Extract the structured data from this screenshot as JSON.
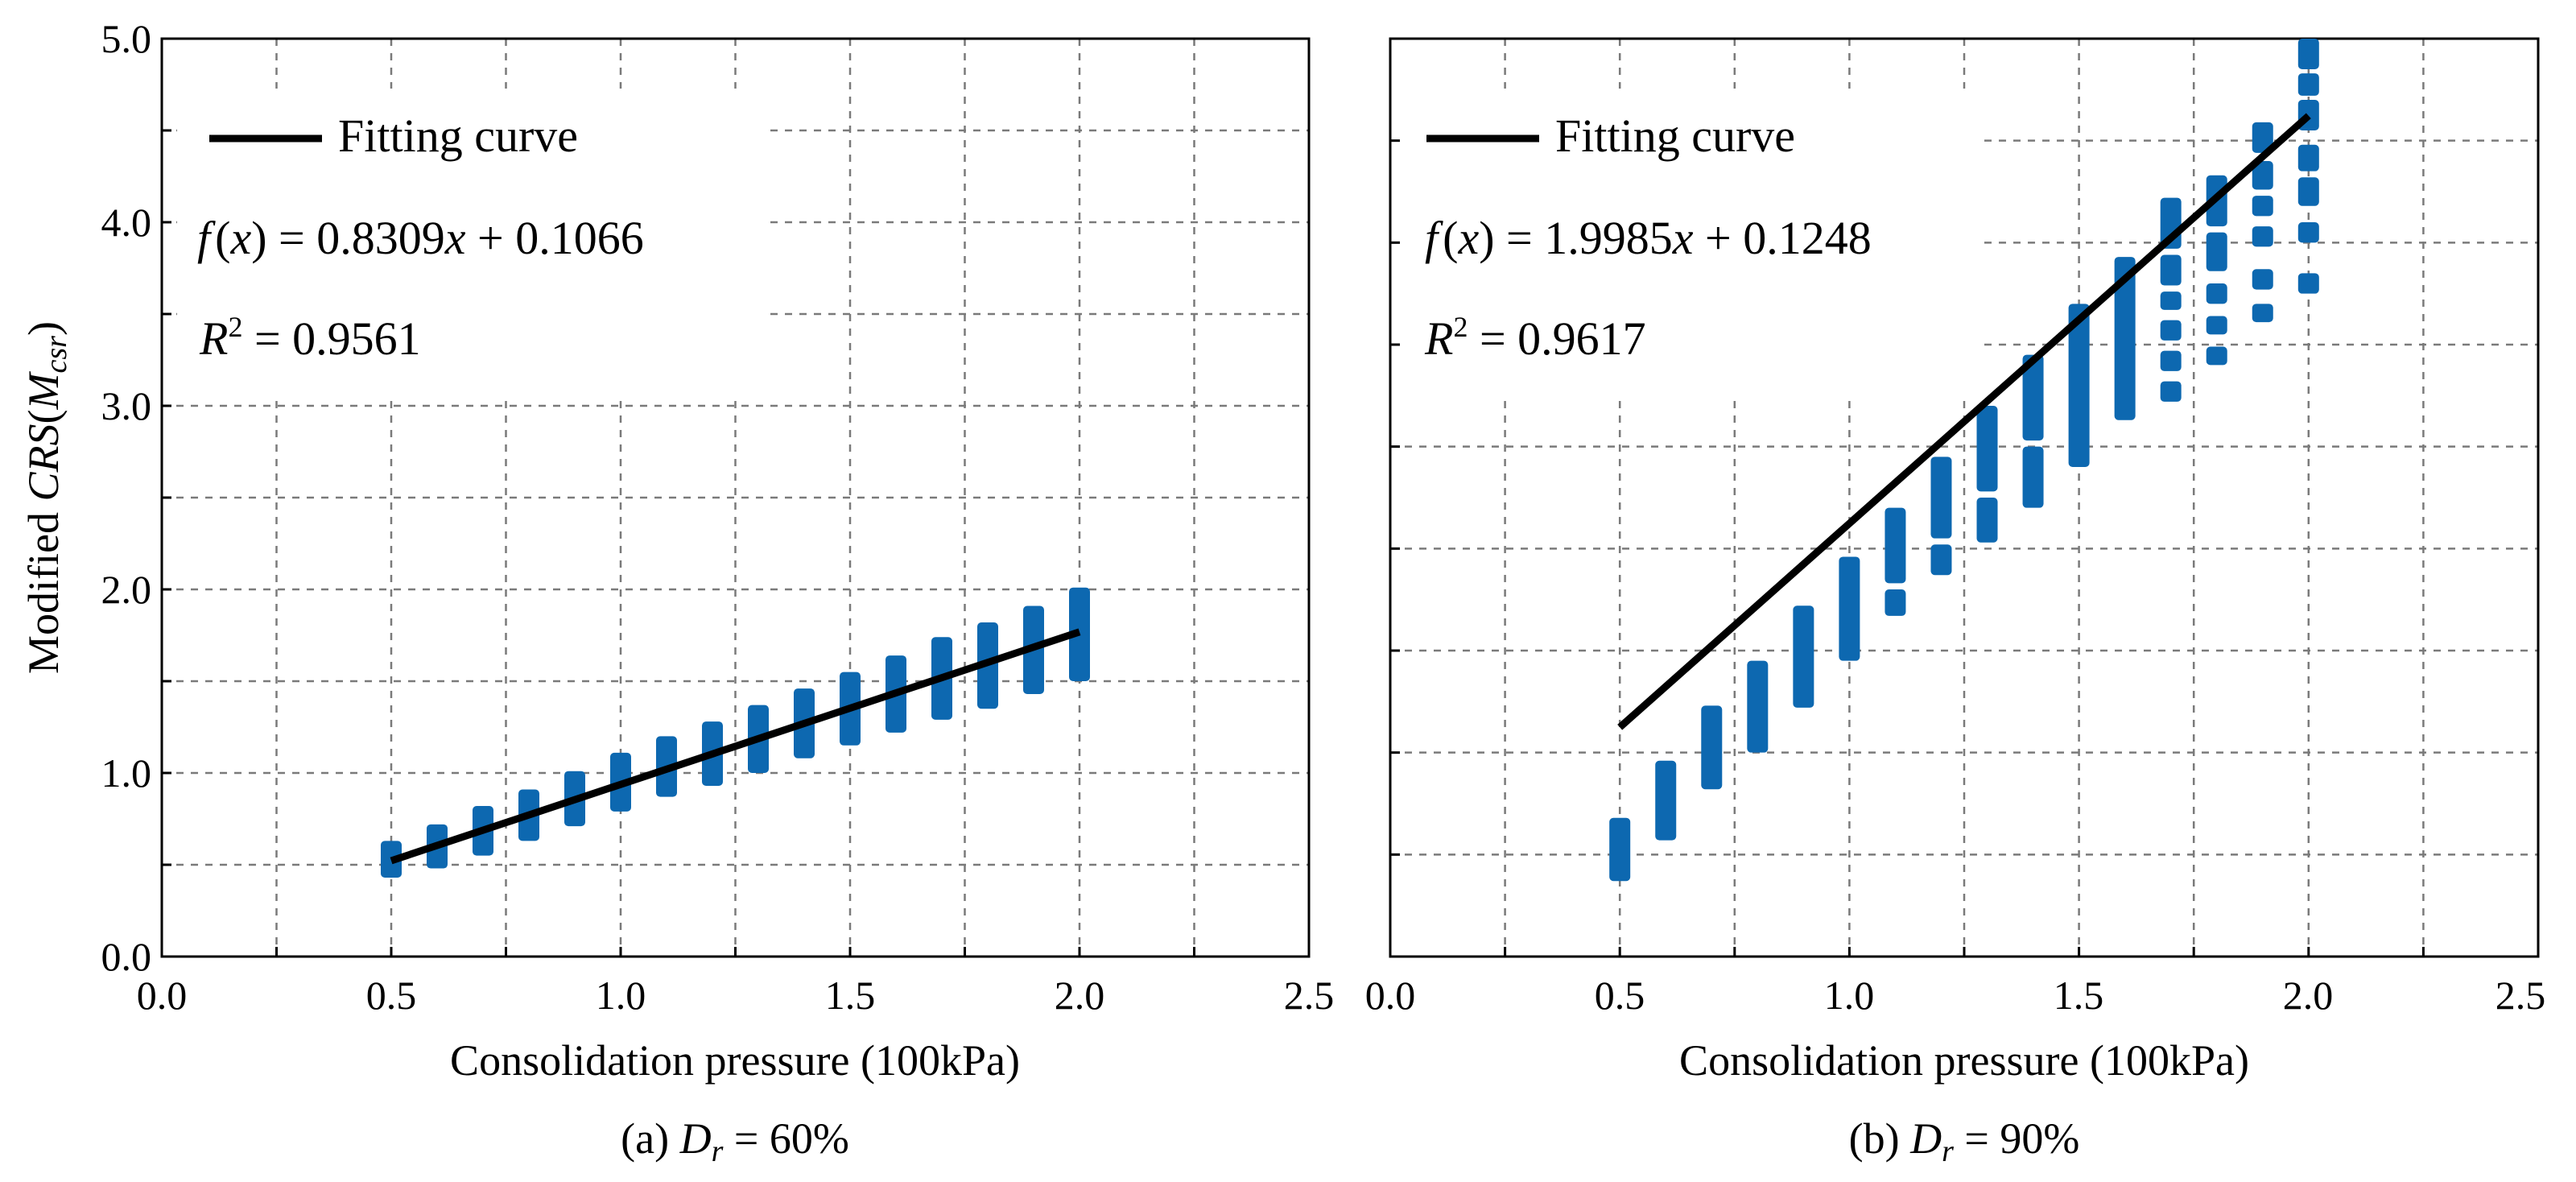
{
  "chart_data": [
    {
      "type": "scatter",
      "panel": "a",
      "xlabel": "Consolidation pressure (100kPa)",
      "ylabel_prefix": "Modified ",
      "ylabel_italic": "CRS",
      "ylabel_open": "(",
      "ylabel_sub_base": "M",
      "ylabel_sub": "csr",
      "ylabel_close": ")",
      "xlim": [
        0.0,
        2.5
      ],
      "ylim": [
        0.0,
        5.0
      ],
      "xticks": [
        "0.0",
        "0.5",
        "1.0",
        "1.5",
        "2.0",
        "2.5"
      ],
      "yticks": [
        "0.0",
        "1.0",
        "2.0",
        "3.0",
        "4.0",
        "5.0"
      ],
      "grid": true,
      "legend_label": "Fitting curve",
      "equation": {
        "f": "f",
        "lparen": "(",
        "x": "x",
        "rparen": ")",
        "rhs_coef": " = 0.8309",
        "rhs_x": "x",
        "rhs_const": " + 0.1066"
      },
      "r2": {
        "R": "R",
        "sup": "2",
        "value": " = 0.9561"
      },
      "caption": {
        "prefix": "(a) ",
        "D": "D",
        "sub": "r",
        "suffix": " = 60%"
      },
      "fit": {
        "slope": 0.8309,
        "intercept": 0.1066,
        "x_start": 0.5,
        "x_end": 2.0
      },
      "series": [
        {
          "name": "data",
          "x": 0.5,
          "ranges": [
            [
              0.43,
              0.63
            ]
          ]
        },
        {
          "name": "data",
          "x": 0.6,
          "ranges": [
            [
              0.48,
              0.72
            ]
          ]
        },
        {
          "name": "data",
          "x": 0.7,
          "ranges": [
            [
              0.55,
              0.82
            ]
          ]
        },
        {
          "name": "data",
          "x": 0.8,
          "ranges": [
            [
              0.63,
              0.91
            ]
          ]
        },
        {
          "name": "data",
          "x": 0.9,
          "ranges": [
            [
              0.71,
              1.01
            ]
          ]
        },
        {
          "name": "data",
          "x": 1.0,
          "ranges": [
            [
              0.79,
              1.11
            ]
          ]
        },
        {
          "name": "data",
          "x": 1.1,
          "ranges": [
            [
              0.87,
              1.2
            ]
          ]
        },
        {
          "name": "data",
          "x": 1.2,
          "ranges": [
            [
              0.93,
              1.28
            ]
          ]
        },
        {
          "name": "data",
          "x": 1.3,
          "ranges": [
            [
              1.0,
              1.37
            ]
          ]
        },
        {
          "name": "data",
          "x": 1.4,
          "ranges": [
            [
              1.08,
              1.46
            ]
          ]
        },
        {
          "name": "data",
          "x": 1.5,
          "ranges": [
            [
              1.15,
              1.55
            ]
          ]
        },
        {
          "name": "data",
          "x": 1.6,
          "ranges": [
            [
              1.22,
              1.64
            ]
          ]
        },
        {
          "name": "data",
          "x": 1.7,
          "ranges": [
            [
              1.29,
              1.74
            ]
          ]
        },
        {
          "name": "data",
          "x": 1.8,
          "ranges": [
            [
              1.35,
              1.82
            ]
          ]
        },
        {
          "name": "data",
          "x": 1.9,
          "ranges": [
            [
              1.43,
              1.91
            ]
          ]
        },
        {
          "name": "data",
          "x": 2.0,
          "ranges": [
            [
              1.5,
              2.01
            ]
          ]
        }
      ]
    },
    {
      "type": "scatter",
      "panel": "b",
      "xlabel": "Consolidation pressure (100kPa)",
      "xlim": [
        0.0,
        2.5
      ],
      "ylim": [
        0.0,
        4.5
      ],
      "xticks": [
        "0.0",
        "0.5",
        "1.0",
        "1.5",
        "2.0",
        "2.5"
      ],
      "grid": true,
      "legend_label": "Fitting curve",
      "equation": {
        "f": "f",
        "lparen": "(",
        "x": "x",
        "rparen": ")",
        "rhs_coef": "  = 1.9985",
        "rhs_x": "x",
        "rhs_const": " + 0.1248"
      },
      "r2": {
        "R": "R",
        "sup": "2",
        "value": " = 0.9617"
      },
      "caption": {
        "prefix": "(b) ",
        "D": "D",
        "sub": "r",
        "suffix": " =  90%"
      },
      "fit": {
        "slope": 1.9985,
        "intercept": 0.1248,
        "x_start": 0.5,
        "x_end": 2.0
      },
      "series": [
        {
          "name": "data",
          "x": 0.5,
          "ranges": [
            [
              0.37,
              0.68
            ]
          ]
        },
        {
          "name": "data",
          "x": 0.6,
          "ranges": [
            [
              0.57,
              0.96
            ]
          ]
        },
        {
          "name": "data",
          "x": 0.7,
          "ranges": [
            [
              0.82,
              1.23
            ]
          ]
        },
        {
          "name": "data",
          "x": 0.8,
          "ranges": [
            [
              1.0,
              1.45
            ]
          ]
        },
        {
          "name": "data",
          "x": 0.9,
          "ranges": [
            [
              1.22,
              1.72
            ]
          ]
        },
        {
          "name": "data",
          "x": 1.0,
          "ranges": [
            [
              1.45,
              1.96
            ]
          ]
        },
        {
          "name": "data",
          "x": 1.1,
          "ranges": [
            [
              1.67,
              1.8
            ],
            [
              1.83,
              2.2
            ]
          ]
        },
        {
          "name": "data",
          "x": 1.2,
          "ranges": [
            [
              1.87,
              2.02
            ],
            [
              2.05,
              2.45
            ]
          ]
        },
        {
          "name": "data",
          "x": 1.3,
          "ranges": [
            [
              2.03,
              2.25
            ],
            [
              2.28,
              2.7
            ]
          ]
        },
        {
          "name": "data",
          "x": 1.4,
          "ranges": [
            [
              2.2,
              2.5
            ],
            [
              2.53,
              2.95
            ]
          ]
        },
        {
          "name": "data",
          "x": 1.5,
          "ranges": [
            [
              2.4,
              3.2
            ]
          ]
        },
        {
          "name": "data",
          "x": 1.6,
          "ranges": [
            [
              2.63,
              3.43
            ]
          ]
        },
        {
          "name": "data",
          "x": 1.7,
          "ranges": [
            [
              2.72,
              2.82
            ],
            [
              2.87,
              2.97
            ],
            [
              3.02,
              3.12
            ],
            [
              3.17,
              3.26
            ],
            [
              3.29,
              3.44
            ],
            [
              3.47,
              3.72
            ]
          ]
        },
        {
          "name": "data",
          "x": 1.8,
          "ranges": [
            [
              2.9,
              2.99
            ],
            [
              3.05,
              3.14
            ],
            [
              3.2,
              3.3
            ],
            [
              3.36,
              3.55
            ],
            [
              3.58,
              3.83
            ]
          ]
        },
        {
          "name": "data",
          "x": 1.9,
          "ranges": [
            [
              3.11,
              3.2
            ],
            [
              3.27,
              3.37
            ],
            [
              3.48,
              3.58
            ],
            [
              3.63,
              3.73
            ],
            [
              3.76,
              3.9
            ],
            [
              3.94,
              4.09
            ]
          ]
        },
        {
          "name": "data",
          "x": 2.0,
          "ranges": [
            [
              3.25,
              3.35
            ],
            [
              3.5,
              3.6
            ],
            [
              3.68,
              3.82
            ],
            [
              3.85,
              3.98
            ],
            [
              4.05,
              4.2
            ],
            [
              4.22,
              4.33
            ],
            [
              4.35,
              4.5
            ]
          ]
        }
      ]
    }
  ]
}
